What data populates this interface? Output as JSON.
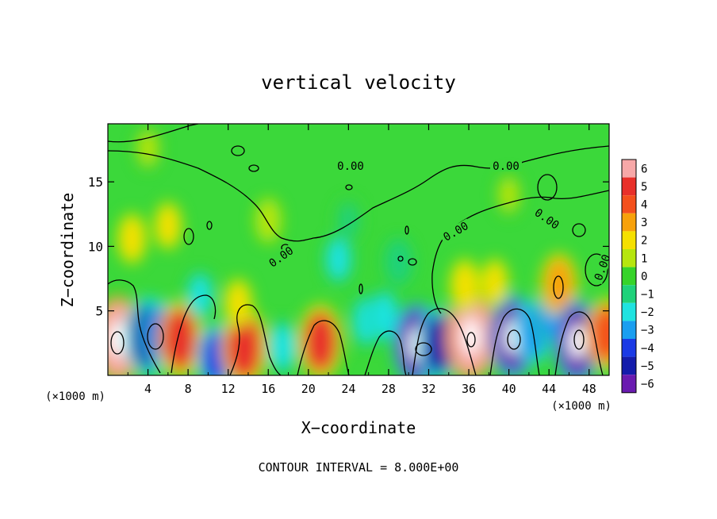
{
  "chart_data": {
    "type": "heatmap",
    "title": "vertical velocity",
    "xlabel": "X−coordinate",
    "ylabel": "Z−coordinate",
    "x_unit_left": "(×1000 m)",
    "x_unit_right": "(×1000 m)",
    "footer": "CONTOUR INTERVAL = 8.000E+00",
    "xlim": [
      0,
      50
    ],
    "ylim": [
      0,
      19.5
    ],
    "xticks": [
      4,
      8,
      12,
      16,
      20,
      24,
      28,
      32,
      36,
      40,
      44,
      48
    ],
    "yticks": [
      5,
      10,
      15
    ],
    "colorbar": {
      "ticks": [
        6,
        5,
        4,
        3,
        2,
        1,
        0,
        -1,
        -2,
        -3,
        -4,
        -5,
        -6
      ],
      "colors": [
        "#f7a8a8",
        "#e8302a",
        "#f4501c",
        "#f7a10b",
        "#f5e000",
        "#b6e60e",
        "#36d42a",
        "#1fd27a",
        "#1fe3e0",
        "#1a9ef0",
        "#1b3ae5",
        "#141cab",
        "#6a1bb0"
      ]
    },
    "contour_labels": [
      "0.00",
      "0.00",
      "0.00",
      "0.00",
      "0.00",
      "0.00"
    ],
    "cells": [
      {
        "x": 1.0,
        "z": 2.8,
        "w": 6.2
      },
      {
        "x": 4.0,
        "z": 3.0,
        "w": -5.4
      },
      {
        "x": 5.4,
        "z": 3.2,
        "w": -3.6
      },
      {
        "x": 7.2,
        "z": 2.8,
        "w": 5.0
      },
      {
        "x": 10.8,
        "z": 1.4,
        "w": -3.8
      },
      {
        "x": 13.6,
        "z": 2.2,
        "w": 5.4
      },
      {
        "x": 17.4,
        "z": 2.2,
        "w": -2.2
      },
      {
        "x": 21.2,
        "z": 2.6,
        "w": 4.8
      },
      {
        "x": 25.8,
        "z": 4.2,
        "w": -2.0
      },
      {
        "x": 27.6,
        "z": 4.6,
        "w": -2.2
      },
      {
        "x": 30.8,
        "z": 2.4,
        "w": -5.6
      },
      {
        "x": 33.0,
        "z": 2.4,
        "w": -4.6
      },
      {
        "x": 36.2,
        "z": 3.0,
        "w": 6.4
      },
      {
        "x": 40.4,
        "z": 3.0,
        "w": -5.8
      },
      {
        "x": 42.4,
        "z": 3.4,
        "w": -3.4
      },
      {
        "x": 44.2,
        "z": 4.6,
        "w": -2.6
      },
      {
        "x": 45.0,
        "z": 7.0,
        "w": 3.4
      },
      {
        "x": 46.8,
        "z": 2.6,
        "w": -5.8
      },
      {
        "x": 49.8,
        "z": 3.2,
        "w": 4.4
      },
      {
        "x": 9.2,
        "z": 6.2,
        "w": -1.6
      },
      {
        "x": 13.0,
        "z": 5.6,
        "w": 1.8
      },
      {
        "x": 23.0,
        "z": 9.0,
        "w": -1.6
      },
      {
        "x": 29.0,
        "z": 8.8,
        "w": -1.4
      },
      {
        "x": 35.6,
        "z": 7.0,
        "w": 2.2
      },
      {
        "x": 38.6,
        "z": 7.2,
        "w": 1.6
      },
      {
        "x": 2.4,
        "z": 10.6,
        "w": 2.0
      },
      {
        "x": 6.0,
        "z": 11.6,
        "w": 1.6
      },
      {
        "x": 16.0,
        "z": 12.0,
        "w": 1.2
      },
      {
        "x": 4.0,
        "z": 17.6,
        "w": 1.0
      },
      {
        "x": 24.0,
        "z": 12.0,
        "w": -1.0
      },
      {
        "x": 40.0,
        "z": 14.0,
        "w": 0.9
      }
    ]
  }
}
